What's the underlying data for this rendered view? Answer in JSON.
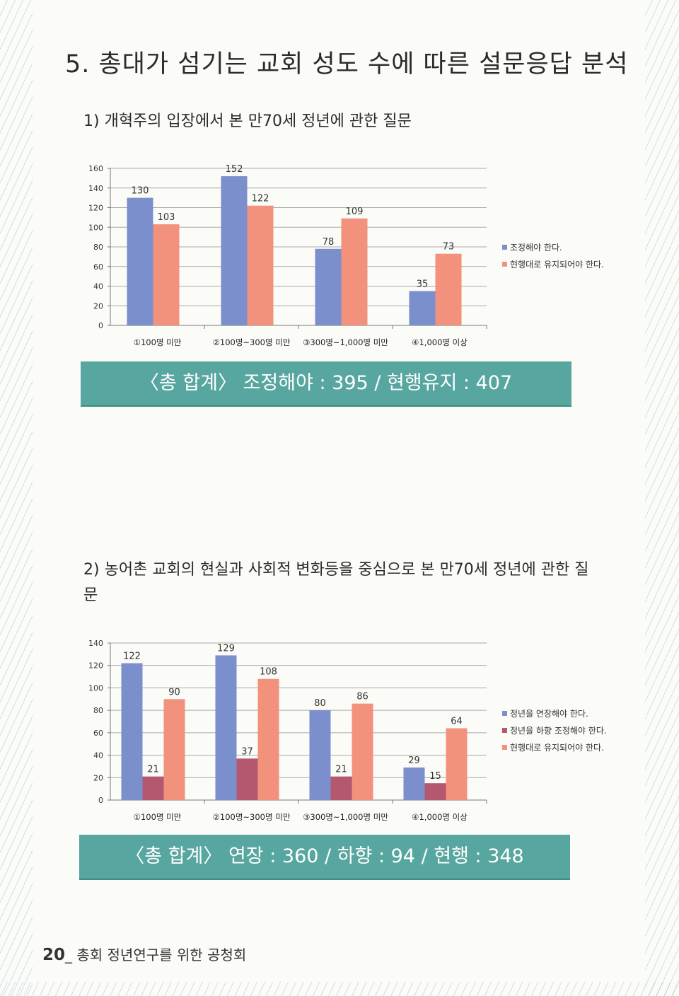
{
  "page": {
    "section_title": "5. 총대가 섬기는 교회 성도 수에 따른 설문응답 분석",
    "footer_page_number": "20",
    "footer_separator": "_",
    "footer_text": "총회 정년연구를 위한 공청회"
  },
  "q1": {
    "title": "1) 개혁주의 입장에서 본 만70세 정년에 관한 질문",
    "summary": "〈총 합계〉 조정해야 : 395 / 현행유지 : 407"
  },
  "q2": {
    "title": "2) 농어촌 교회의 현실과 사회적 변화등을 중심으로 본 만70세 정년에 관한 질문",
    "summary": "〈총 합계〉 연장 : 360 / 하향 : 94 / 현행 : 348"
  },
  "colors": {
    "blue": "#7b8fcc",
    "salmon": "#f2927c",
    "maroon": "#b3586e",
    "band": "#58a6a0"
  },
  "chart_data": [
    {
      "type": "bar",
      "categories": [
        "①100명 미만",
        "②100명~300명 미만",
        "③300명~1,000명 미만",
        "④1,000명 이상"
      ],
      "series": [
        {
          "name": "조정해야 한다.",
          "values": [
            130,
            152,
            78,
            35
          ],
          "color": "#7b8fcc"
        },
        {
          "name": "현행대로 유지되어야 한다.",
          "values": [
            103,
            122,
            109,
            73
          ],
          "color": "#f2927c"
        }
      ],
      "ylim": [
        0,
        160
      ],
      "yticks": [
        0,
        20,
        40,
        60,
        80,
        100,
        120,
        140,
        160
      ],
      "grid": true,
      "legend": "right"
    },
    {
      "type": "bar",
      "categories": [
        "①100명 미만",
        "②100명~300명 미만",
        "③300명~1,000명 미만",
        "④1,000명 이상"
      ],
      "series": [
        {
          "name": "정년을 연장해야 한다.",
          "values": [
            122,
            129,
            80,
            29
          ],
          "color": "#7b8fcc"
        },
        {
          "name": "정년을 하향 조정해야 한다.",
          "values": [
            21,
            37,
            21,
            15
          ],
          "color": "#b3586e"
        },
        {
          "name": "현행대로 유지되어야 한다.",
          "values": [
            90,
            108,
            86,
            64
          ],
          "color": "#f2927c"
        }
      ],
      "ylim": [
        0,
        140
      ],
      "yticks": [
        0,
        20,
        40,
        60,
        80,
        100,
        120,
        140
      ],
      "grid": true,
      "legend": "right"
    }
  ]
}
